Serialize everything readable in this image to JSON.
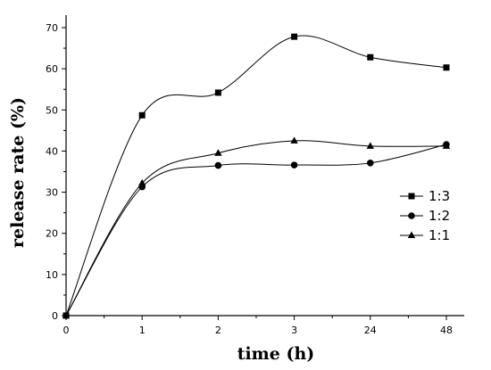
{
  "chart_data": {
    "type": "line",
    "title": "",
    "xlabel": "time (h)",
    "ylabel": "release rate (%)",
    "categories": [
      "0",
      "1",
      "2",
      "3",
      "24",
      "48"
    ],
    "ylim": [
      0,
      70
    ],
    "yticks": [
      0,
      10,
      20,
      30,
      40,
      50,
      60,
      70
    ],
    "grid": false,
    "legend_position": "right",
    "series": [
      {
        "name": "1:3",
        "marker": "square",
        "values": [
          0,
          48.7,
          54.2,
          67.8,
          62.8,
          60.3
        ]
      },
      {
        "name": "1:2",
        "marker": "circle",
        "values": [
          0,
          31.3,
          36.5,
          36.6,
          37.1,
          41.6
        ]
      },
      {
        "name": "1:1",
        "marker": "triangle",
        "values": [
          0,
          32.2,
          39.5,
          42.5,
          41.2,
          41.2
        ]
      }
    ]
  }
}
